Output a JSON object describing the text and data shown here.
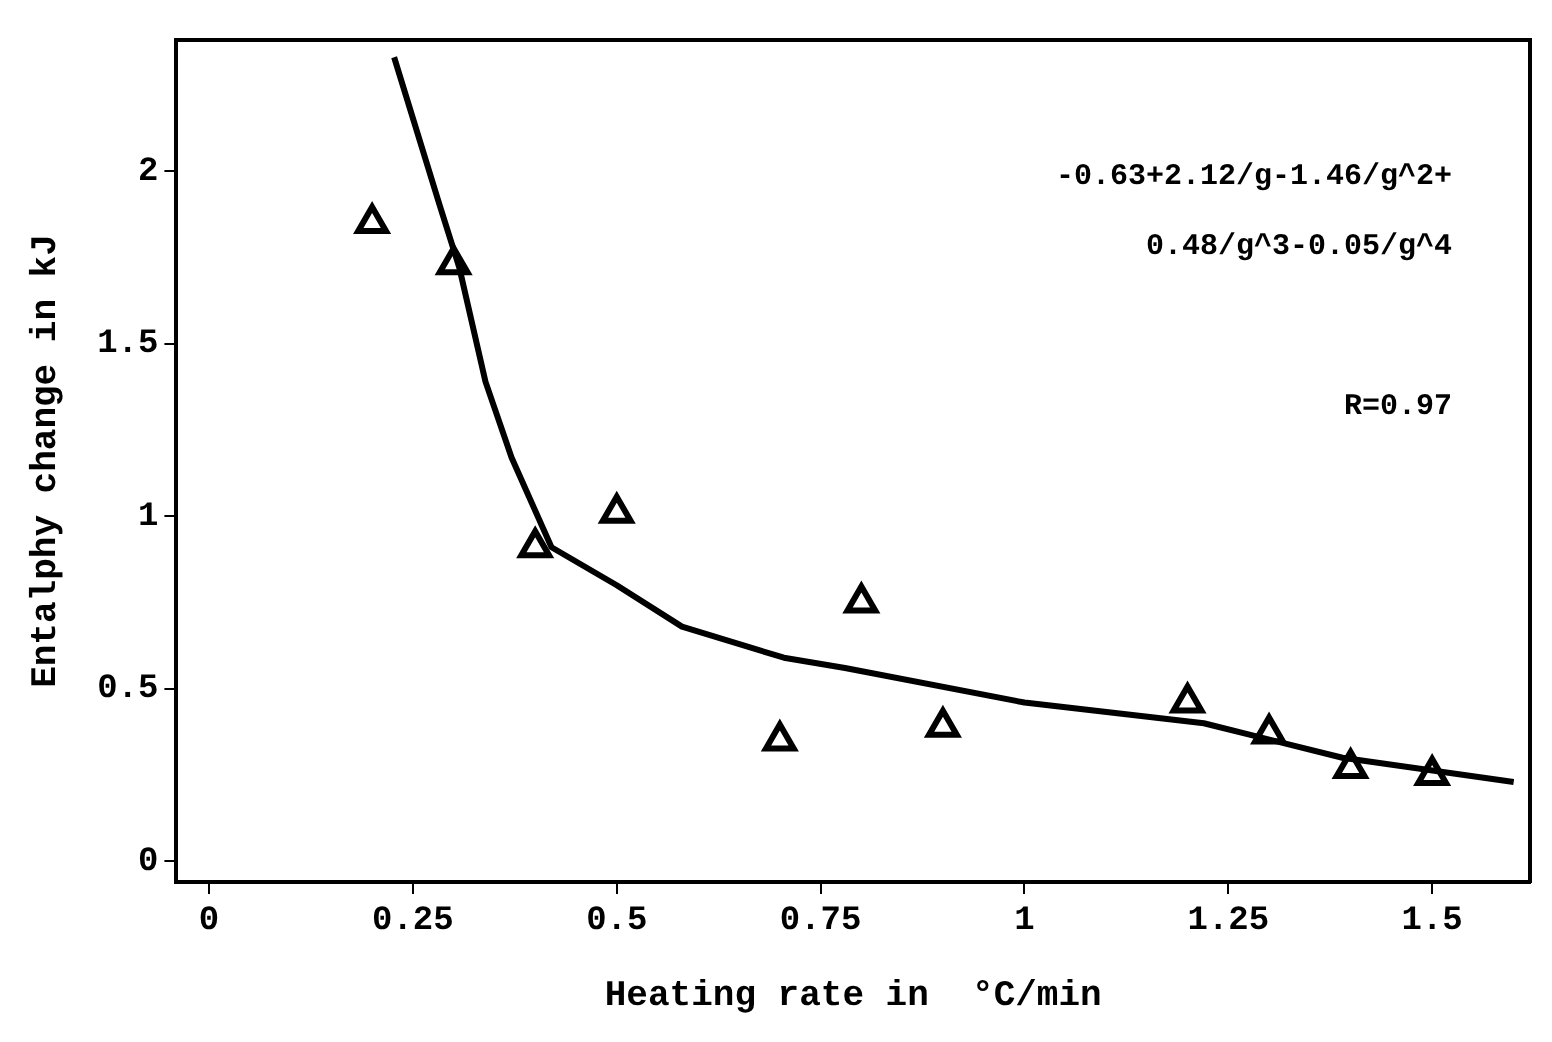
{
  "chart_data": {
    "type": "scatter",
    "xlabel": "Heating rate in  °C/min",
    "ylabel": "Entalphy change in kJ",
    "xlim": [
      -0.04,
      1.62
    ],
    "ylim": [
      -0.06,
      2.38
    ],
    "xticks": [
      0,
      0.25,
      0.5,
      0.75,
      1,
      1.25,
      1.5
    ],
    "yticks": [
      0,
      0.5,
      1,
      1.5,
      2
    ],
    "grid": false,
    "legend": false,
    "annotations": [
      "-0.63+2.12/g-1.46/g^2+",
      "0.48/g^3-0.05/g^4",
      "R=0.97"
    ],
    "series": [
      {
        "type": "scatter",
        "marker": "triangle",
        "color": "#000000",
        "x": [
          0.2,
          0.3,
          0.4,
          0.5,
          0.7,
          0.8,
          0.9,
          1.2,
          1.3,
          1.4,
          1.5
        ],
        "values": [
          1.85,
          1.73,
          0.91,
          1.01,
          0.35,
          0.75,
          0.39,
          0.46,
          0.37,
          0.27,
          0.25
        ]
      },
      {
        "type": "line",
        "marker": "none",
        "line_style": "solid",
        "color": "#000000",
        "x": [
          0.227,
          0.283,
          0.307,
          0.339,
          0.371,
          0.42,
          0.5,
          0.58,
          0.705,
          0.78,
          1.0,
          1.22,
          1.39,
          1.6
        ],
        "values": [
          2.33,
          1.9,
          1.72,
          1.39,
          1.17,
          0.91,
          0.8,
          0.68,
          0.59,
          0.56,
          0.46,
          0.4,
          0.3,
          0.23
        ]
      }
    ]
  }
}
